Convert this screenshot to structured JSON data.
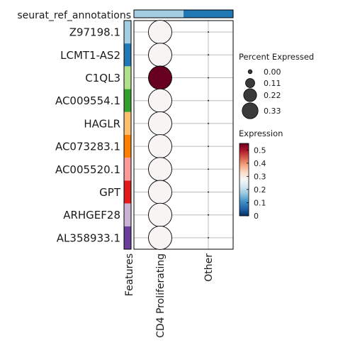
{
  "chart_data": {
    "type": "dotplot",
    "top_annotation_title": "seurat_ref_annotations",
    "left_annotation_label": "Features",
    "features": [
      "Z97198.1",
      "LCMT1-AS2",
      "C1QL3",
      "AC009554.1",
      "HAGLR",
      "AC073283.1",
      "AC005520.1",
      "GPT",
      "ARHGEF28",
      "AL358933.1"
    ],
    "feature_colors": [
      "#a6cee3",
      "#1f78b4",
      "#b2df8a",
      "#33a02c",
      "#fdbf6f",
      "#ff7f00",
      "#fb9a99",
      "#e31a1c",
      "#cab2d6",
      "#6a3d9a"
    ],
    "groups": [
      "CD4 Proliferating",
      "Other"
    ],
    "group_colors": [
      "#a6cee3",
      "#1f78b4"
    ],
    "percent_expressed": [
      [
        0.33,
        0.0
      ],
      [
        0.33,
        0.0
      ],
      [
        0.33,
        0.0
      ],
      [
        0.33,
        0.0
      ],
      [
        0.33,
        0.0
      ],
      [
        0.33,
        0.0
      ],
      [
        0.33,
        0.0
      ],
      [
        0.33,
        0.0
      ],
      [
        0.33,
        0.0
      ],
      [
        0.33,
        0.0
      ]
    ],
    "expression": [
      [
        0.28,
        0.0
      ],
      [
        0.28,
        0.0
      ],
      [
        0.55,
        0.0
      ],
      [
        0.28,
        0.0
      ],
      [
        0.28,
        0.0
      ],
      [
        0.28,
        0.0
      ],
      [
        0.28,
        0.0
      ],
      [
        0.28,
        0.0
      ],
      [
        0.28,
        0.0
      ],
      [
        0.28,
        0.0
      ]
    ],
    "size_legend": {
      "title": "Percent Expressed",
      "values": [
        0.0,
        0.11,
        0.22,
        0.33
      ],
      "labels": [
        "0.00",
        "0.11",
        "0.22",
        "0.33"
      ]
    },
    "color_legend": {
      "title": "Expression",
      "range": [
        0,
        0.55
      ],
      "ticks": [
        0,
        0.1,
        0.2,
        0.3,
        0.4,
        0.5
      ],
      "tick_labels": [
        "0",
        "0.1",
        "0.2",
        "0.3",
        "0.4",
        "0.5"
      ],
      "colormap": [
        "#053061",
        "#2166ac",
        "#4393c3",
        "#92c5de",
        "#d1e5f0",
        "#f7f7f7",
        "#fddbc7",
        "#f4a582",
        "#d6604d",
        "#b2182b",
        "#67001f"
      ]
    },
    "grid": true
  }
}
